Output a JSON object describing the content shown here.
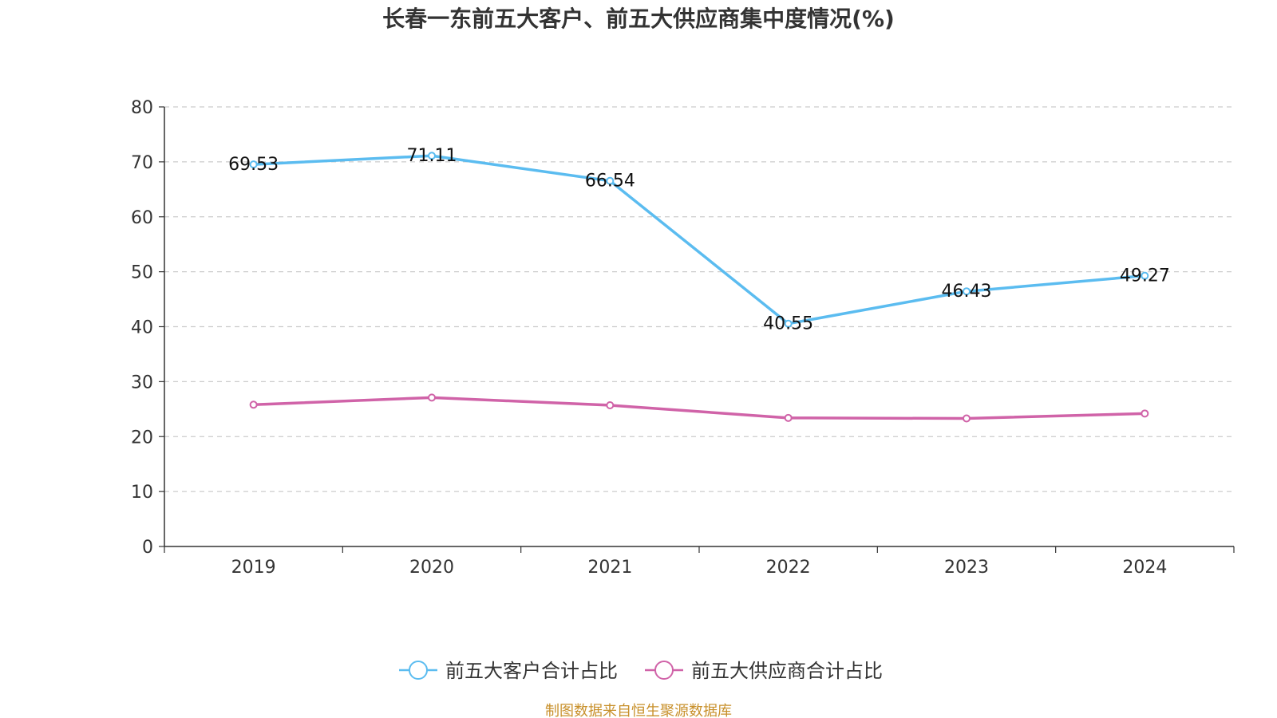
{
  "chart_data": {
    "type": "line",
    "title": "长春一东前五大客户、前五大供应商集中度情况(%)",
    "categories": [
      "2019",
      "2020",
      "2021",
      "2022",
      "2023",
      "2024"
    ],
    "ylim": [
      0,
      80
    ],
    "yticks": [
      0,
      10,
      20,
      30,
      40,
      50,
      60,
      70,
      80
    ],
    "grid": true,
    "legend_position": "bottom-center",
    "series": [
      {
        "name": "前五大客户合计占比",
        "values": [
          69.53,
          71.11,
          66.54,
          40.55,
          46.43,
          49.27
        ],
        "labels": [
          "69.53",
          "71.11",
          "66.54",
          "40.55",
          "46.43",
          "49.27"
        ],
        "color": "#5bbcf0"
      },
      {
        "name": "前五大供应商合计占比",
        "values": [
          25.8,
          27.1,
          25.7,
          23.4,
          23.3,
          24.2
        ],
        "color": "#d063a8"
      }
    ]
  },
  "source": {
    "text": "制图数据来自恒生聚源数据库",
    "color": "#c8902b"
  }
}
